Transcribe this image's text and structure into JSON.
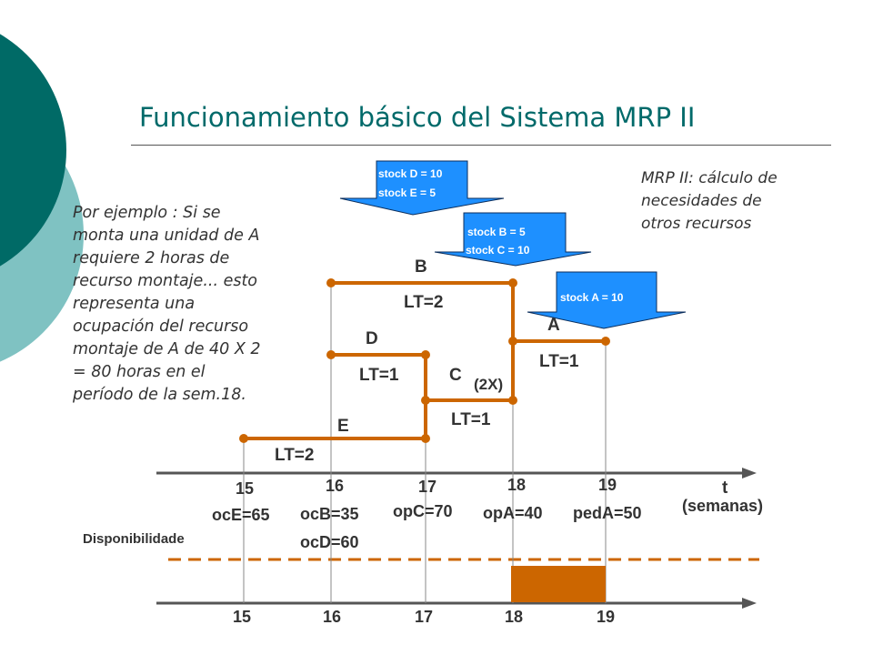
{
  "title": "Funcionamiento básico del Sistema MRP II",
  "note_left": {
    "lines": [
      "Por ejemplo : Si se",
      "monta una unidad de A",
      "requiere 2 horas de",
      "recurso montaje... esto",
      "representa una",
      "ocupación del recurso",
      "montaje de A de 40 X 2",
      "= 80 horas en el",
      "período de la sem.18."
    ]
  },
  "note_right": {
    "lines": [
      "MRP II: cálculo de",
      "necesidades de",
      "otros recursos"
    ]
  },
  "stock_arrows": [
    {
      "lines": [
        "stock D = 10",
        "stock E = 5"
      ]
    },
    {
      "lines": [
        "stock B = 5",
        "stock C = 10"
      ]
    },
    {
      "lines": [
        "stock A = 10"
      ]
    }
  ],
  "items": {
    "B": "B",
    "B_lt": "LT=2",
    "D": "D",
    "D_lt": "LT=1",
    "C": "C",
    "C_multiplier": "(2X)",
    "C_lt": "LT=1",
    "A": "A",
    "A_lt": "LT=1",
    "E": "E",
    "E_lt": "LT=2"
  },
  "weeks": [
    "15",
    "16",
    "17",
    "18",
    "19"
  ],
  "axis_label_t": "t",
  "axis_label_unit": "(semanas)",
  "orders": [
    "ocE=65",
    "ocB=35",
    "opC=70",
    "opA=40",
    "pedA=50",
    "ocD=60"
  ],
  "availability_label": "Disponibilidade",
  "colors": {
    "title": "#006a6a",
    "line": "#cc6600",
    "arrow": "#1e90ff",
    "teal_dark": "#006a66",
    "teal_light": "#7fc2c2",
    "block": "#cc6600"
  }
}
